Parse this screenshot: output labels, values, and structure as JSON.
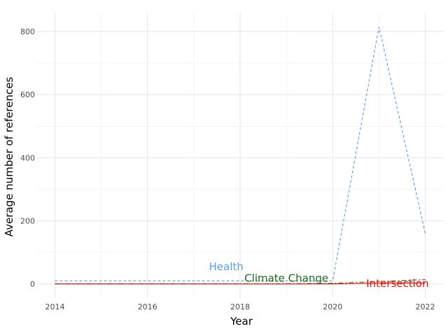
{
  "chart_data": {
    "type": "line",
    "title": "",
    "xlabel": "Year",
    "ylabel": "Average number of references",
    "xlim": [
      2013.6,
      2022.4
    ],
    "ylim": [
      -45,
      860
    ],
    "x_ticks": [
      2014,
      2016,
      2018,
      2020,
      2022
    ],
    "y_ticks": [
      0,
      200,
      400,
      600,
      800
    ],
    "grid": true,
    "legend": "none (direct labels)",
    "x": [
      2014,
      2015,
      2016,
      2017,
      2018,
      2019,
      2020,
      2021,
      2022
    ],
    "series": [
      {
        "name": "Health",
        "color": "#5b9bf0",
        "dash": "dashed",
        "values": [
          10,
          10,
          10,
          10,
          10,
          10,
          10,
          815,
          160
        ],
        "label_at": [
          2017.7,
          55
        ]
      },
      {
        "name": "Climate Change",
        "color": "#1a6b1a",
        "dash": "dashdot",
        "values": [
          1,
          1,
          1,
          1,
          1,
          1,
          2,
          8,
          14
        ],
        "label_at": [
          2019.0,
          18
        ]
      },
      {
        "name": "Intersection",
        "color": "#e8120c",
        "dash": "solid",
        "values": [
          0,
          0,
          0,
          0,
          0,
          0,
          0,
          3,
          3
        ],
        "label_at": [
          2021.4,
          2
        ]
      }
    ]
  }
}
